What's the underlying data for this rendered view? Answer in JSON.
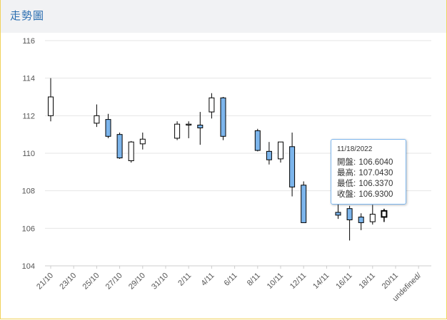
{
  "header": {
    "title": "走勢圖"
  },
  "colors": {
    "up_fill": "#ffffff",
    "down_fill": "#7cb5ec",
    "line": "#000000",
    "grid": "#e6e6e6"
  },
  "tooltip": {
    "date": "11/18/2022",
    "rows": [
      {
        "label": "開盤:",
        "value": "106.6040"
      },
      {
        "label": "最高:",
        "value": "107.0430"
      },
      {
        "label": "最低:",
        "value": "106.3370"
      },
      {
        "label": "收盤:",
        "value": "106.9300"
      }
    ]
  },
  "chart_data": {
    "type": "candlestick",
    "title": "走勢圖",
    "ylim": [
      104,
      116
    ],
    "yticks": [
      104,
      106,
      108,
      110,
      112,
      114,
      116
    ],
    "xtick_labels": [
      "21/10",
      "23/10",
      "25/10",
      "27/10",
      "29/10",
      "31/10",
      "2/11",
      "4/11",
      "6/11",
      "8/11",
      "10/11",
      "12/11",
      "14/11",
      "16/11",
      "18/11",
      "20/11",
      "undefined/"
    ],
    "candles": [
      {
        "slot": 0,
        "open": 112.0,
        "high": 114.0,
        "low": 111.7,
        "close": 113.0
      },
      {
        "slot": 4,
        "open": 111.6,
        "high": 112.6,
        "low": 111.4,
        "close": 112.0
      },
      {
        "slot": 5,
        "open": 111.8,
        "high": 112.1,
        "low": 110.8,
        "close": 110.9
      },
      {
        "slot": 6,
        "open": 111.0,
        "high": 111.1,
        "low": 109.7,
        "close": 109.75
      },
      {
        "slot": 7,
        "open": 109.6,
        "high": 110.65,
        "low": 109.5,
        "close": 110.6
      },
      {
        "slot": 8,
        "open": 110.5,
        "high": 111.1,
        "low": 110.2,
        "close": 110.75
      },
      {
        "slot": 11,
        "open": 110.8,
        "high": 111.7,
        "low": 110.7,
        "close": 111.55
      },
      {
        "slot": 12,
        "open": 111.5,
        "high": 111.7,
        "low": 110.8,
        "close": 111.55
      },
      {
        "slot": 13,
        "open": 111.5,
        "high": 112.2,
        "low": 110.45,
        "close": 111.35
      },
      {
        "slot": 14,
        "open": 112.2,
        "high": 113.2,
        "low": 111.85,
        "close": 112.95
      },
      {
        "slot": 15,
        "open": 112.95,
        "high": 113.0,
        "low": 110.7,
        "close": 110.9
      },
      {
        "slot": 18,
        "open": 111.2,
        "high": 111.3,
        "low": 110.1,
        "close": 110.15
      },
      {
        "slot": 19,
        "open": 110.1,
        "high": 110.6,
        "low": 109.4,
        "close": 109.65
      },
      {
        "slot": 20,
        "open": 109.7,
        "high": 110.6,
        "low": 109.5,
        "close": 110.6
      },
      {
        "slot": 21,
        "open": 110.35,
        "high": 111.1,
        "low": 107.7,
        "close": 108.2
      },
      {
        "slot": 22,
        "open": 108.3,
        "high": 108.5,
        "low": 106.3,
        "close": 106.3
      },
      {
        "slot": 25,
        "open": 106.85,
        "high": 107.3,
        "low": 106.5,
        "close": 106.7
      },
      {
        "slot": 26,
        "open": 107.05,
        "high": 107.2,
        "low": 105.35,
        "close": 106.45
      },
      {
        "slot": 27,
        "open": 106.6,
        "high": 106.8,
        "low": 105.9,
        "close": 106.3
      },
      {
        "slot": 28,
        "open": 106.35,
        "high": 107.25,
        "low": 106.2,
        "close": 106.75
      },
      {
        "slot": 29,
        "open": 106.604,
        "high": 107.043,
        "low": 106.337,
        "close": 106.93
      }
    ],
    "highlighted_slot": 29
  }
}
